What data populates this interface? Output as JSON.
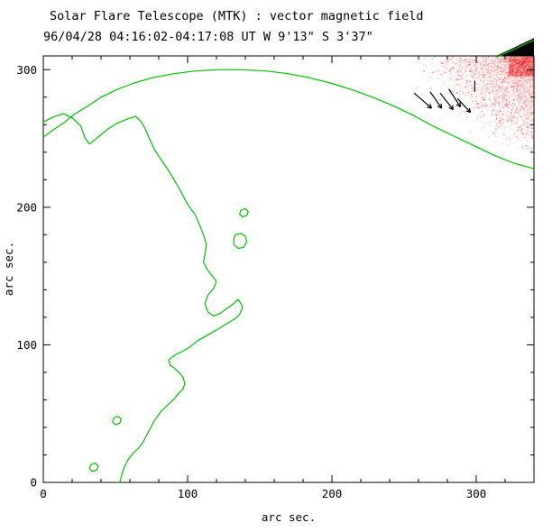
{
  "title": "Solar Flare Telescope (MTK) : vector magnetic field",
  "subtitle": "96/04/28  04:16:02-04:17:08 UT    W 9'13\"  S 3'37\"",
  "chart_data": {
    "type": "contour",
    "title": "Solar Flare Telescope (MTK) : vector magnetic field",
    "subtitle": "96/04/28  04:16:02-04:17:08 UT    W 9'13\"  S 3'37\"",
    "xlabel": "arc sec.",
    "ylabel": "arc sec.",
    "xlim": [
      0,
      340
    ],
    "ylim": [
      0,
      310
    ],
    "xticks": [
      0,
      100,
      200,
      300
    ],
    "yticks": [
      0,
      100,
      200,
      300
    ],
    "minor_tick_step": 20,
    "grid": false,
    "frame_color": "#000000",
    "contour_color": "#00c000",
    "arrow_color": "#000000",
    "speckle_seed": 42,
    "speckle_colors": [
      "#ffd9d9",
      "#ffb3b3",
      "#ff8c8c",
      "#ff5050"
    ],
    "speckle_core_colors": [
      "#ff8080",
      "#ff5050",
      "#e03030",
      "#ff9999"
    ],
    "speckle_region": {
      "x_min": 250,
      "x_max": 340,
      "y_min": 228,
      "y_max": 310
    },
    "corner_wedge": {
      "color": "#000000",
      "points": [
        [
          314,
          310
        ],
        [
          340,
          323
        ],
        [
          340,
          310
        ]
      ],
      "edge_line": [
        [
          314,
          309
        ],
        [
          340,
          321.5
        ]
      ]
    },
    "contours": [
      {
        "name": "solar-limb",
        "points": [
          [
            0,
            251
          ],
          [
            8,
            257
          ],
          [
            15,
            262
          ],
          [
            22,
            268
          ],
          [
            30,
            273
          ],
          [
            40,
            280
          ],
          [
            50,
            285
          ],
          [
            62,
            290
          ],
          [
            75,
            294
          ],
          [
            90,
            297
          ],
          [
            105,
            299
          ],
          [
            120,
            300
          ],
          [
            138,
            300
          ],
          [
            155,
            299
          ],
          [
            170,
            297
          ],
          [
            185,
            294
          ],
          [
            200,
            290
          ],
          [
            215,
            285
          ],
          [
            228,
            280
          ],
          [
            242,
            274
          ],
          [
            256,
            267
          ],
          [
            270,
            259
          ],
          [
            284,
            252
          ],
          [
            298,
            245
          ],
          [
            312,
            238
          ],
          [
            326,
            232
          ],
          [
            340,
            228
          ]
        ]
      },
      {
        "name": "neutral-line",
        "points": [
          [
            0,
            262
          ],
          [
            8,
            266
          ],
          [
            14,
            268
          ],
          [
            20,
            265
          ],
          [
            26,
            259
          ],
          [
            29,
            250
          ],
          [
            32,
            246
          ],
          [
            38,
            251
          ],
          [
            45,
            257
          ],
          [
            51,
            261
          ],
          [
            58,
            264
          ],
          [
            64,
            266
          ],
          [
            68,
            262
          ],
          [
            71,
            256
          ],
          [
            74,
            249
          ],
          [
            77,
            242
          ],
          [
            82,
            234
          ],
          [
            86,
            228
          ],
          [
            90,
            221
          ],
          [
            94,
            214
          ],
          [
            98,
            206
          ],
          [
            102,
            199
          ],
          [
            105,
            195
          ],
          [
            108,
            188
          ],
          [
            111,
            180
          ],
          [
            113,
            173
          ],
          [
            112,
            166
          ],
          [
            111,
            160
          ],
          [
            114,
            154
          ],
          [
            118,
            149
          ],
          [
            120,
            146
          ],
          [
            118,
            141
          ],
          [
            114,
            136
          ],
          [
            112,
            130
          ],
          [
            114,
            124
          ],
          [
            118,
            121
          ],
          [
            123,
            123
          ],
          [
            128,
            127
          ],
          [
            132,
            130
          ],
          [
            135,
            133
          ],
          [
            137,
            130
          ],
          [
            138,
            127
          ],
          [
            136,
            122
          ],
          [
            133,
            119
          ],
          [
            128,
            116
          ],
          [
            122,
            112
          ],
          [
            117,
            109
          ],
          [
            112,
            106
          ],
          [
            107,
            103
          ],
          [
            101,
            98
          ],
          [
            96,
            95
          ],
          [
            92,
            93
          ],
          [
            89,
            91
          ],
          [
            87,
            89
          ],
          [
            88,
            85
          ],
          [
            91,
            83
          ],
          [
            94,
            80
          ],
          [
            97,
            76
          ],
          [
            98,
            72
          ],
          [
            97,
            68
          ],
          [
            94,
            65
          ],
          [
            91,
            61
          ],
          [
            88,
            58
          ],
          [
            85,
            55
          ],
          [
            82,
            52
          ],
          [
            79,
            48
          ],
          [
            77,
            45
          ],
          [
            75,
            41
          ],
          [
            73,
            37
          ],
          [
            71,
            33
          ],
          [
            69,
            29
          ],
          [
            66,
            25
          ],
          [
            62,
            21
          ],
          [
            59,
            17
          ],
          [
            57,
            13
          ],
          [
            55,
            8
          ],
          [
            54,
            4
          ],
          [
            53,
            0
          ]
        ]
      },
      {
        "name": "small-loop-1",
        "points": [
          [
            137,
            198
          ],
          [
            140,
            199
          ],
          [
            142,
            197
          ],
          [
            141,
            194
          ],
          [
            138,
            193
          ],
          [
            136,
            195
          ],
          [
            137,
            198
          ]
        ]
      },
      {
        "name": "small-loop-2",
        "points": [
          [
            133,
            180
          ],
          [
            137,
            181
          ],
          [
            140,
            179
          ],
          [
            141,
            175
          ],
          [
            139,
            171
          ],
          [
            135,
            170
          ],
          [
            132,
            173
          ],
          [
            132,
            177
          ],
          [
            133,
            180
          ]
        ]
      },
      {
        "name": "small-loop-3",
        "points": [
          [
            49,
            47
          ],
          [
            52,
            48
          ],
          [
            54,
            46
          ],
          [
            53,
            43
          ],
          [
            50,
            42
          ],
          [
            48,
            44
          ],
          [
            49,
            47
          ]
        ]
      },
      {
        "name": "small-loop-4",
        "points": [
          [
            33,
            13
          ],
          [
            36,
            14
          ],
          [
            38,
            12
          ],
          [
            37,
            9
          ],
          [
            34,
            8
          ],
          [
            32,
            10
          ],
          [
            33,
            13
          ]
        ]
      }
    ],
    "arrows": [
      {
        "from": [
          257,
          283
        ],
        "to": [
          269,
          272
        ],
        "head": true
      },
      {
        "from": [
          268,
          284
        ],
        "to": [
          276,
          272
        ],
        "head": true
      },
      {
        "from": [
          275,
          283
        ],
        "to": [
          284,
          271
        ],
        "head": true
      },
      {
        "from": [
          281,
          286
        ],
        "to": [
          289,
          273
        ],
        "head": true
      },
      {
        "from": [
          287,
          279
        ],
        "to": [
          296,
          269
        ],
        "head": true
      },
      {
        "from": [
          299,
          292
        ],
        "to": [
          299,
          284
        ],
        "head": false
      }
    ]
  }
}
